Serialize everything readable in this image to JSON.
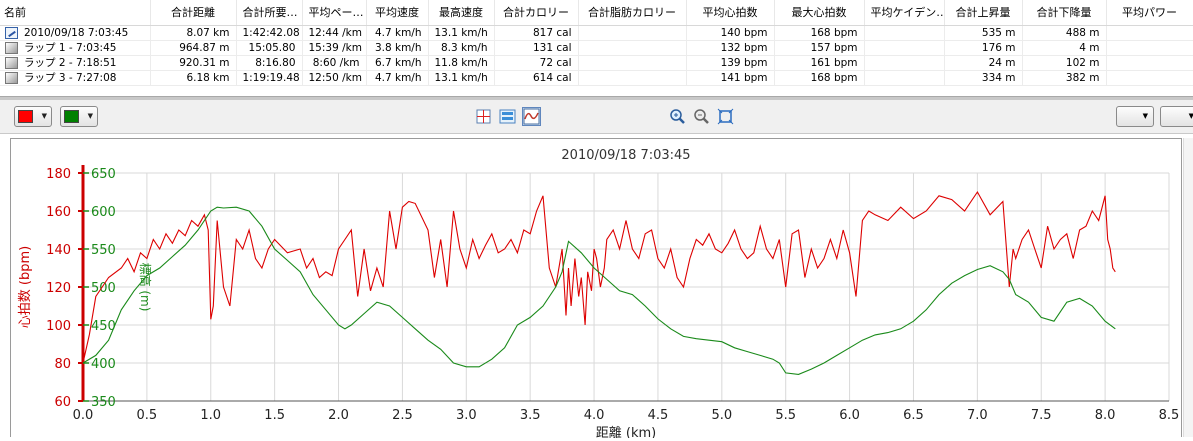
{
  "table": {
    "columns": [
      "名前",
      "合計距離",
      "合計所要…",
      "平均ペー…",
      "平均速度",
      "最高速度",
      "合計カロリー",
      "合計脂肪カロリー",
      "平均心拍数",
      "最大心拍数",
      "平均ケイデン…",
      "合計上昇量",
      "合計下降量",
      "平均パワー"
    ],
    "rows": [
      {
        "icon": "activity-icon",
        "cells": [
          "2010/09/18 7:03:45",
          "8.07 km",
          "1:42:42.08",
          "12:44 /km",
          "4.7 km/h",
          "13.1 km/h",
          "817 cal",
          "",
          "140 bpm",
          "168 bpm",
          "",
          "535 m",
          "488 m",
          ""
        ]
      },
      {
        "icon": "lap-icon",
        "cells": [
          "ラップ 1 - 7:03:45",
          "964.87 m",
          "15:05.80",
          "15:39 /km",
          "3.8 km/h",
          "8.3 km/h",
          "131 cal",
          "",
          "132 bpm",
          "157 bpm",
          "",
          "176 m",
          "4 m",
          ""
        ]
      },
      {
        "icon": "lap-icon",
        "cells": [
          "ラップ 2 - 7:18:51",
          "920.31 m",
          "8:16.80",
          "8:60 /km",
          "6.7 km/h",
          "11.8 km/h",
          "72 cal",
          "",
          "139 bpm",
          "161 bpm",
          "",
          "24 m",
          "102 m",
          ""
        ]
      },
      {
        "icon": "lap-icon",
        "cells": [
          "ラップ 3 - 7:27:08",
          "6.18 km",
          "1:19:19.48",
          "12:50 /km",
          "4.7 km/h",
          "13.1 km/h",
          "614 cal",
          "",
          "141 bpm",
          "168 bpm",
          "",
          "334 m",
          "382 m",
          ""
        ]
      }
    ]
  },
  "toolbar": {
    "color1": "#ff0000",
    "color2": "#008000",
    "axis_select": "距離",
    "buttons": [
      "crosshair-icon",
      "split-view-icon",
      "graph-view-icon",
      "zoom-in-icon",
      "zoom-out-icon",
      "fit-icon"
    ]
  },
  "chart_data": {
    "type": "line",
    "title": "2010/09/18 7:03:45",
    "xlabel": "距離 (km)",
    "xlim": [
      0,
      8.5
    ],
    "xticks": [
      "0.0",
      "0.5",
      "1.0",
      "1.5",
      "2.0",
      "2.5",
      "3.0",
      "3.5",
      "4.0",
      "4.5",
      "5.0",
      "5.5",
      "6.0",
      "6.5",
      "7.0",
      "7.5",
      "8.0",
      "8.5"
    ],
    "grid": true,
    "axes": [
      {
        "label": "心拍数 (bpm)",
        "color": "#cc0000",
        "lim": [
          60,
          180
        ],
        "ticks": [
          "60",
          "80",
          "100",
          "120",
          "140",
          "160",
          "180"
        ]
      },
      {
        "label": "標高 (m)",
        "color": "#1a8a1a",
        "lim": [
          350,
          650
        ],
        "ticks": [
          "350",
          "400",
          "450",
          "500",
          "550",
          "600",
          "650"
        ]
      }
    ],
    "series": [
      {
        "color": "#dd0000",
        "axis": 0,
        "x": [
          0,
          0.05,
          0.1,
          0.15,
          0.2,
          0.3,
          0.35,
          0.4,
          0.45,
          0.5,
          0.55,
          0.6,
          0.65,
          0.7,
          0.75,
          0.8,
          0.85,
          0.9,
          0.95,
          0.98,
          1.0,
          1.02,
          1.05,
          1.1,
          1.15,
          1.2,
          1.25,
          1.3,
          1.35,
          1.4,
          1.45,
          1.5,
          1.6,
          1.7,
          1.75,
          1.8,
          1.85,
          1.9,
          1.95,
          2.0,
          2.05,
          2.1,
          2.15,
          2.2,
          2.25,
          2.3,
          2.35,
          2.4,
          2.45,
          2.5,
          2.55,
          2.6,
          2.7,
          2.75,
          2.8,
          2.85,
          2.9,
          2.95,
          3.0,
          3.05,
          3.1,
          3.15,
          3.2,
          3.25,
          3.3,
          3.35,
          3.4,
          3.45,
          3.5,
          3.55,
          3.6,
          3.65,
          3.7,
          3.75,
          3.78,
          3.8,
          3.82,
          3.85,
          3.88,
          3.9,
          3.93,
          3.95,
          3.98,
          4.0,
          4.02,
          4.05,
          4.08,
          4.1,
          4.15,
          4.2,
          4.25,
          4.3,
          4.35,
          4.4,
          4.45,
          4.5,
          4.55,
          4.6,
          4.65,
          4.7,
          4.75,
          4.8,
          4.85,
          4.9,
          4.95,
          5.0,
          5.05,
          5.1,
          5.15,
          5.2,
          5.25,
          5.3,
          5.35,
          5.4,
          5.45,
          5.5,
          5.55,
          5.6,
          5.65,
          5.7,
          5.75,
          5.8,
          5.85,
          5.9,
          5.95,
          6.0,
          6.05,
          6.1,
          6.15,
          6.2,
          6.3,
          6.4,
          6.5,
          6.6,
          6.7,
          6.8,
          6.9,
          7.0,
          7.1,
          7.2,
          7.25,
          7.28,
          7.3,
          7.35,
          7.4,
          7.45,
          7.5,
          7.55,
          7.6,
          7.65,
          7.7,
          7.75,
          7.8,
          7.85,
          7.9,
          7.95,
          8.0,
          8.02,
          8.04,
          8.06,
          8.08
        ],
        "y": [
          80,
          95,
          115,
          120,
          125,
          130,
          135,
          128,
          138,
          135,
          145,
          140,
          148,
          143,
          150,
          147,
          155,
          152,
          158,
          150,
          103,
          110,
          155,
          120,
          110,
          145,
          140,
          150,
          135,
          130,
          140,
          145,
          138,
          140,
          130,
          135,
          125,
          128,
          126,
          140,
          145,
          150,
          115,
          140,
          118,
          130,
          120,
          160,
          140,
          162,
          165,
          164,
          150,
          125,
          145,
          120,
          160,
          140,
          130,
          145,
          135,
          142,
          148,
          138,
          140,
          145,
          138,
          150,
          148,
          160,
          168,
          130,
          120,
          140,
          105,
          130,
          110,
          135,
          115,
          125,
          100,
          128,
          118,
          140,
          135,
          120,
          130,
          145,
          150,
          140,
          155,
          140,
          135,
          148,
          150,
          135,
          130,
          140,
          125,
          120,
          135,
          145,
          142,
          148,
          140,
          138,
          143,
          150,
          140,
          135,
          138,
          152,
          140,
          135,
          145,
          120,
          148,
          150,
          125,
          140,
          130,
          135,
          145,
          135,
          150,
          138,
          115,
          155,
          160,
          158,
          155,
          162,
          156,
          160,
          168,
          166,
          160,
          170,
          158,
          165,
          120,
          140,
          135,
          145,
          150,
          140,
          130,
          152,
          140,
          145,
          148,
          135,
          150,
          152,
          160,
          155,
          168,
          145,
          140,
          130,
          128
        ]
      },
      {
        "color": "#1a8a1a",
        "axis": 1,
        "x": [
          0,
          0.1,
          0.2,
          0.3,
          0.4,
          0.5,
          0.6,
          0.7,
          0.8,
          0.9,
          1.0,
          1.05,
          1.1,
          1.2,
          1.3,
          1.4,
          1.5,
          1.6,
          1.7,
          1.8,
          1.9,
          2.0,
          2.05,
          2.1,
          2.2,
          2.3,
          2.4,
          2.5,
          2.6,
          2.7,
          2.8,
          2.9,
          3.0,
          3.1,
          3.2,
          3.3,
          3.4,
          3.5,
          3.6,
          3.7,
          3.75,
          3.8,
          3.9,
          4.0,
          4.1,
          4.2,
          4.3,
          4.4,
          4.5,
          4.6,
          4.7,
          4.8,
          4.9,
          5.0,
          5.1,
          5.2,
          5.3,
          5.4,
          5.45,
          5.5,
          5.6,
          5.7,
          5.8,
          5.9,
          6.0,
          6.1,
          6.2,
          6.3,
          6.4,
          6.5,
          6.6,
          6.7,
          6.8,
          6.9,
          7.0,
          7.1,
          7.2,
          7.25,
          7.3,
          7.4,
          7.5,
          7.6,
          7.7,
          7.8,
          7.9,
          8.0,
          8.08
        ],
        "y": [
          400,
          410,
          430,
          470,
          495,
          515,
          525,
          540,
          555,
          575,
          600,
          605,
          604,
          605,
          600,
          580,
          550,
          535,
          520,
          490,
          470,
          450,
          445,
          450,
          465,
          480,
          475,
          460,
          445,
          430,
          418,
          400,
          395,
          395,
          405,
          420,
          450,
          460,
          475,
          500,
          520,
          560,
          545,
          525,
          510,
          495,
          490,
          475,
          458,
          445,
          435,
          432,
          430,
          428,
          420,
          415,
          410,
          405,
          400,
          387,
          385,
          392,
          400,
          410,
          420,
          430,
          437,
          440,
          445,
          455,
          470,
          490,
          505,
          515,
          523,
          528,
          520,
          510,
          490,
          480,
          460,
          455,
          480,
          485,
          475,
          455,
          445
        ]
      }
    ]
  }
}
